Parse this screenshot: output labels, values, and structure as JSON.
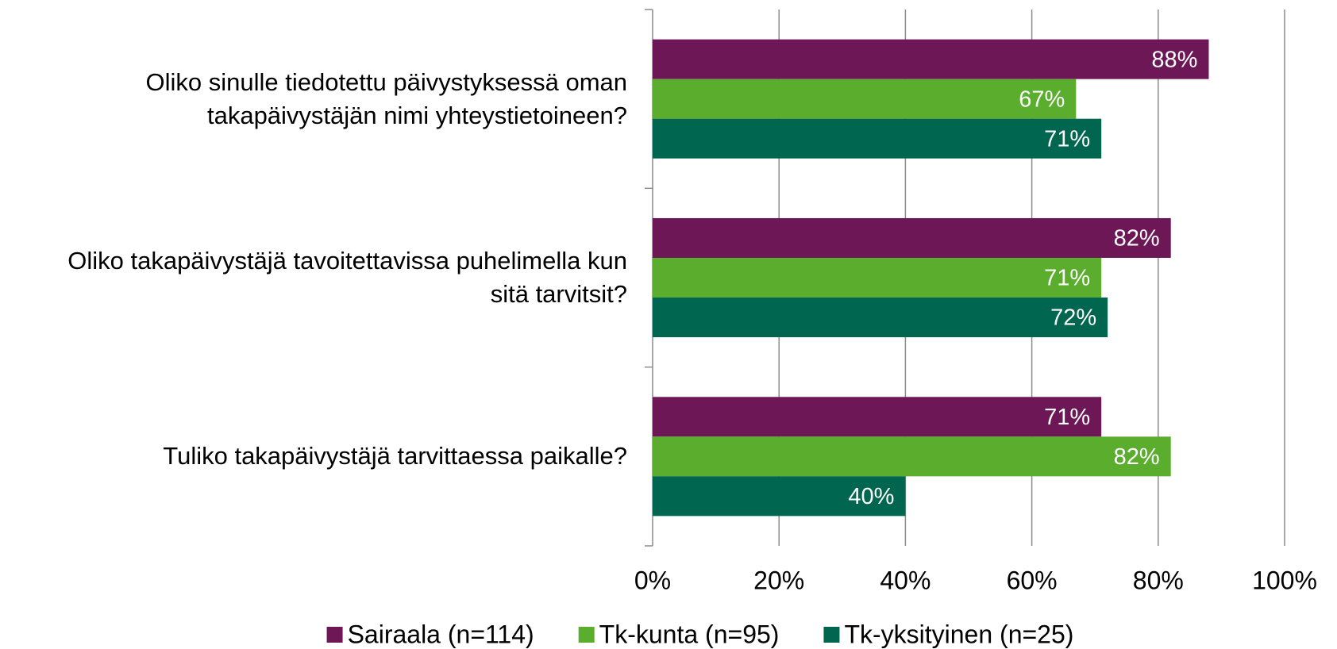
{
  "chart_data": {
    "type": "barh",
    "categories": [
      "Oliko sinulle tiedotettu päivystyksessä oman takapäivystäjän nimi yhteystietoineen?",
      "Oliko takapäivystäjä tavoitettavissa puhelimella kun sitä tarvitsit?",
      "Tuliko takapäivystäjä tarvittaessa paikalle?"
    ],
    "series": [
      {
        "name": "Sairaala (n=114)",
        "color": "#6d1757",
        "values": [
          88,
          82,
          71
        ],
        "value_labels": [
          "88%",
          "82%",
          "71%"
        ]
      },
      {
        "name": "Tk-kunta (n=95)",
        "color": "#5aad2d",
        "values": [
          67,
          71,
          82
        ],
        "value_labels": [
          "67%",
          "71%",
          "82%"
        ]
      },
      {
        "name": "Tk-yksityinen (n=25)",
        "color": "#00664f",
        "values": [
          71,
          72,
          40
        ],
        "value_labels": [
          "71%",
          "72%",
          "40%"
        ]
      }
    ],
    "xlim": [
      0,
      100
    ],
    "xticks": [
      {
        "value": 0,
        "label": "0%"
      },
      {
        "value": 20,
        "label": "20%"
      },
      {
        "value": 40,
        "label": "40%"
      },
      {
        "value": 60,
        "label": "60%"
      },
      {
        "value": 80,
        "label": "80%"
      },
      {
        "value": 100,
        "label": "100%"
      }
    ],
    "grid": true,
    "legend": "bottom"
  }
}
